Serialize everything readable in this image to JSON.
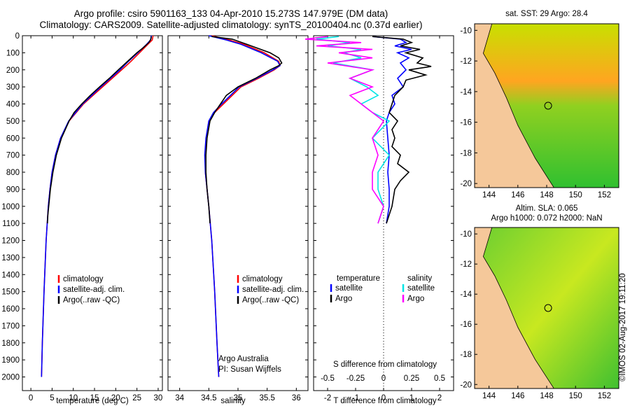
{
  "header": {
    "title_line1": "Argo profile: csiro 5901163_133 04-Apr-2010 15.273S 147.979E (DM data)",
    "title_line2": "Climatology: CARS2009. Satellite-adjusted climatology: synTS_20100404.nc (0.37d earlier)"
  },
  "footer": {
    "timestamp": "©IMOS 02-Aug-2017 19:11:20"
  },
  "maps": {
    "sst": {
      "title": "sat. SST: 29 Argo: 28.4",
      "xticks": [
        "144",
        "146",
        "148",
        "150",
        "152"
      ],
      "yticks": [
        "-10",
        "-12",
        "-14",
        "-16",
        "-18",
        "-20"
      ]
    },
    "sla": {
      "title_line1": "Altim. SLA: 0.065",
      "title_line2": "Argo h1000: 0.072 h2000: NaN",
      "xticks": [
        "144",
        "146",
        "148",
        "150",
        "152"
      ],
      "yticks": [
        "-10",
        "-12",
        "-14",
        "-16",
        "-18",
        "-20"
      ]
    }
  },
  "colors": {
    "climatology": "#ff0000",
    "satellite": "#0000ff",
    "argo": "#000000",
    "s_satellite": "#00e5e5",
    "s_argo": "#ff00ff",
    "land": "#f5c89a"
  },
  "chart_data": [
    {
      "type": "line",
      "title": "",
      "xlabel": "temperature (deg C)",
      "ylabel": "",
      "xlim": [
        -2,
        31
      ],
      "ylim": [
        2080,
        0
      ],
      "xticks": [
        0,
        5,
        10,
        15,
        20,
        25,
        30
      ],
      "yticks": [
        0,
        100,
        200,
        300,
        400,
        500,
        600,
        700,
        800,
        900,
        1000,
        1100,
        1200,
        1300,
        1400,
        1500,
        1600,
        1700,
        1800,
        1900,
        2000
      ],
      "legend": [
        "climatology",
        "satellite-adj. clim.",
        "Argo(..raw -QC)"
      ],
      "series": [
        {
          "name": "climatology",
          "color": "#ff0000",
          "depth": [
            0,
            25,
            50,
            100,
            150,
            200,
            300,
            400,
            500,
            600,
            700,
            800,
            900,
            1000,
            1200,
            1500,
            1800,
            2000
          ],
          "values": [
            28.8,
            28.6,
            27.6,
            25.6,
            23.6,
            21.4,
            16.9,
            12.4,
            9.0,
            7.0,
            5.8,
            5.0,
            4.5,
            4.1,
            3.6,
            3.1,
            2.7,
            2.5
          ]
        },
        {
          "name": "satellite-adj. clim.",
          "color": "#0000ff",
          "depth": [
            0,
            25,
            50,
            100,
            150,
            200,
            300,
            400,
            500,
            600,
            700,
            800,
            900,
            1000,
            1200,
            1500,
            1800,
            2000
          ],
          "values": [
            28.4,
            28.2,
            27.3,
            25.2,
            23.0,
            21.0,
            16.5,
            12.2,
            8.9,
            7.0,
            5.8,
            5.0,
            4.5,
            4.1,
            3.6,
            3.1,
            2.7,
            2.5
          ]
        },
        {
          "name": "Argo(..raw -QC)",
          "color": "#000000",
          "depth": [
            5,
            20,
            40,
            70,
            100,
            150,
            200,
            250,
            300,
            350,
            400,
            450,
            500,
            600,
            700,
            800,
            900,
            1000,
            1050,
            1100
          ],
          "values": [
            28.4,
            28.3,
            27.8,
            26.5,
            25.0,
            22.8,
            20.6,
            18.5,
            16.2,
            14.0,
            12.0,
            10.2,
            9.0,
            7.2,
            6.0,
            5.2,
            4.6,
            4.2,
            4.0,
            3.9
          ]
        }
      ]
    },
    {
      "type": "line",
      "xlabel": "salinity",
      "xlim": [
        33.8,
        36.2
      ],
      "ylim": [
        2080,
        0
      ],
      "xticks": [
        34,
        34.5,
        35,
        35.5,
        36
      ],
      "legend": [
        "climatology",
        "satellite-adj. clim.",
        "Argo(..raw -QC)"
      ],
      "annotations": [
        "Argo Australia",
        "PI: Susan Wijffels"
      ],
      "series": [
        {
          "name": "climatology",
          "color": "#ff0000",
          "depth": [
            0,
            25,
            50,
            100,
            150,
            175,
            200,
            250,
            300,
            400,
            450,
            500,
            600,
            700,
            800,
            900,
            1000,
            1200,
            1500,
            1800,
            2000
          ],
          "values": [
            34.55,
            34.85,
            35.1,
            35.45,
            35.7,
            35.72,
            35.62,
            35.35,
            35.05,
            34.75,
            34.6,
            34.5,
            34.46,
            34.44,
            34.44,
            34.47,
            34.5,
            34.55,
            34.6,
            34.64,
            34.67
          ]
        },
        {
          "name": "satellite-adj. clim.",
          "color": "#0000ff",
          "depth": [
            0,
            25,
            50,
            100,
            150,
            175,
            200,
            250,
            300,
            400,
            450,
            500,
            600,
            700,
            800,
            900,
            1000,
            1200,
            1500,
            1800,
            2000
          ],
          "values": [
            34.5,
            34.8,
            35.05,
            35.4,
            35.68,
            35.72,
            35.6,
            35.32,
            35.02,
            34.72,
            34.58,
            34.5,
            34.45,
            34.43,
            34.44,
            34.47,
            34.5,
            34.55,
            34.6,
            34.64,
            34.67
          ]
        },
        {
          "name": "Argo(..raw -QC)",
          "color": "#000000",
          "depth": [
            5,
            20,
            50,
            100,
            130,
            160,
            175,
            200,
            250,
            300,
            350,
            400,
            450,
            500,
            600,
            700,
            800,
            900,
            1000,
            1100
          ],
          "values": [
            34.55,
            34.9,
            35.15,
            35.55,
            35.7,
            35.75,
            35.7,
            35.55,
            35.3,
            35.0,
            34.8,
            34.7,
            34.6,
            34.52,
            34.47,
            34.45,
            34.45,
            34.47,
            34.5,
            34.52
          ]
        }
      ]
    },
    {
      "type": "line",
      "xlabel": "T difference from climatology",
      "xlabel_top": "S difference from climatology",
      "xlim": [
        -2.5,
        2.5
      ],
      "ylim": [
        2080,
        0
      ],
      "xticks_bottom": [
        "-2",
        "-1",
        "0",
        "1",
        "2"
      ],
      "xticks_bottom_values": [
        -2,
        -1,
        0,
        1,
        2
      ],
      "xticks_top": [
        "-0.5",
        "-0.25",
        "0",
        "0.25",
        "0.5"
      ],
      "xticks_top_values": [
        -0.5,
        -0.25,
        0,
        0.25,
        0.5
      ],
      "legend_temperature": {
        "title": "temperature",
        "entries": [
          "satellite",
          "Argo"
        ]
      },
      "legend_salinity": {
        "title": "salinity",
        "entries": [
          "satellite",
          "Argo"
        ]
      },
      "series": [
        {
          "name": "T satellite",
          "color": "#0000ff",
          "depth": [
            5,
            20,
            40,
            60,
            80,
            100,
            130,
            160,
            200,
            250,
            300,
            350,
            400,
            450,
            500,
            600,
            700,
            800,
            900,
            1000,
            1100
          ],
          "values": [
            -0.4,
            0.6,
            0.8,
            0.4,
            1.0,
            0.5,
            0.9,
            0.6,
            0.8,
            0.5,
            0.7,
            0.3,
            0.4,
            0.2,
            0.1,
            0.15,
            0.2,
            0.15,
            0.2,
            0.2,
            0.1
          ]
        },
        {
          "name": "T Argo",
          "color": "#000000",
          "depth": [
            5,
            20,
            40,
            60,
            80,
            100,
            130,
            160,
            180,
            200,
            230,
            260,
            300,
            350,
            400,
            450,
            500,
            550,
            600,
            650,
            700,
            750,
            800,
            850,
            900,
            1000,
            1050,
            1100
          ],
          "values": [
            -0.4,
            0.7,
            1.0,
            0.6,
            1.3,
            0.8,
            1.4,
            1.2,
            1.7,
            0.9,
            1.5,
            0.8,
            0.7,
            0.4,
            0.3,
            0.2,
            0.5,
            0.3,
            0.4,
            0.3,
            0.6,
            0.5,
            0.9,
            0.6,
            0.4,
            0.3,
            0.2,
            0.1
          ]
        },
        {
          "name": "S satellite",
          "color": "#00e5e5",
          "depth": [
            5,
            20,
            40,
            60,
            80,
            100,
            130,
            160,
            200,
            250,
            300,
            350,
            400,
            450,
            500,
            600,
            700,
            800,
            900,
            1000,
            1100
          ],
          "values": [
            -0.4,
            -0.6,
            -0.3,
            -0.5,
            -0.2,
            -0.35,
            -0.2,
            -0.45,
            -0.1,
            -0.3,
            -0.15,
            -0.05,
            -0.2,
            -0.1,
            0.05,
            -0.1,
            0.05,
            -0.05,
            -0.05,
            0.0,
            -0.05
          ]
        },
        {
          "name": "S Argo",
          "color": "#ff00ff",
          "depth": [
            5,
            20,
            40,
            60,
            80,
            100,
            130,
            160,
            200,
            250,
            300,
            350,
            400,
            450,
            500,
            600,
            700,
            800,
            900,
            1000,
            1100
          ],
          "values": [
            -0.5,
            -0.7,
            -0.2,
            -0.6,
            -0.1,
            -0.4,
            -0.1,
            -0.5,
            -0.1,
            -0.3,
            -0.1,
            -0.3,
            -0.2,
            -0.1,
            0.0,
            -0.1,
            -0.05,
            -0.1,
            -0.1,
            0.0,
            -0.05
          ]
        }
      ]
    }
  ]
}
